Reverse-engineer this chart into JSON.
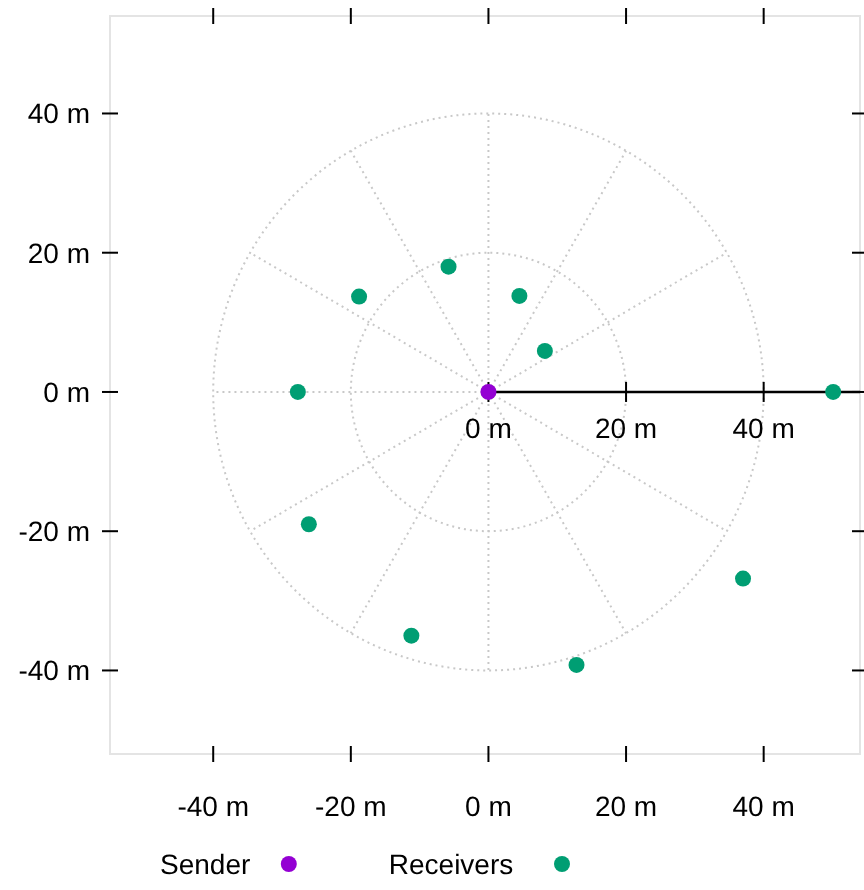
{
  "chart_data": {
    "type": "scatter",
    "xlim": [
      -55,
      54
    ],
    "ylim": [
      -52,
      54
    ],
    "xticks": [
      {
        "value": -40,
        "label": "-40 m"
      },
      {
        "value": -20,
        "label": "-20 m"
      },
      {
        "value": 0,
        "label": "0 m"
      },
      {
        "value": 20,
        "label": "20 m"
      },
      {
        "value": 40,
        "label": "40 m"
      }
    ],
    "yticks": [
      {
        "value": -40,
        "label": "-40 m"
      },
      {
        "value": -20,
        "label": "-20 m"
      },
      {
        "value": 0,
        "label": "0 m"
      },
      {
        "value": 20,
        "label": "20 m"
      },
      {
        "value": 40,
        "label": "40 m"
      }
    ],
    "grid": true,
    "marker": "circle",
    "legend": "bottom",
    "annotations": [
      "0 m",
      "20 m",
      "40 m"
    ],
    "series": [
      {
        "name": "Sender",
        "color": "#9400d3",
        "x": [
          0
        ],
        "values": [
          0
        ]
      },
      {
        "name": "Receivers",
        "color": "#009e73",
        "x": [
          -18.8,
          -5.8,
          4.5,
          8.2,
          -27.7,
          50.1,
          -26.1,
          -11.2,
          12.8,
          37
        ],
        "values": [
          13.7,
          18,
          13.8,
          5.9,
          0,
          0,
          -19,
          -35,
          -39.2,
          -26.8
        ]
      }
    ]
  }
}
